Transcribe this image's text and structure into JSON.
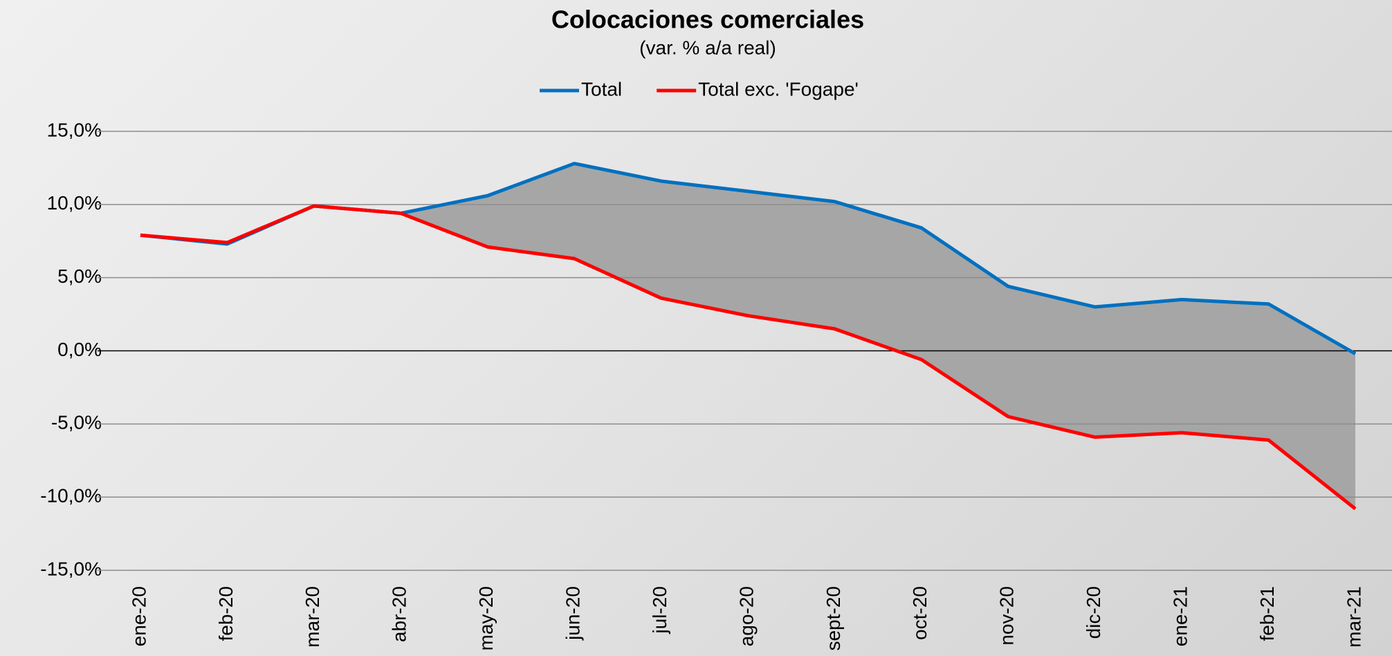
{
  "chart_data": {
    "type": "line",
    "title": "Colocaciones comerciales",
    "subtitle": "(var. % a/a real)",
    "categories": [
      "ene-20",
      "feb-20",
      "mar-20",
      "abr-20",
      "may-20",
      "jun-20",
      "jul-20",
      "ago-20",
      "sept-20",
      "oct-20",
      "nov-20",
      "dic-20",
      "ene-21",
      "feb-21",
      "mar-21"
    ],
    "series": [
      {
        "name": "Total",
        "color": "#0070c0",
        "values": [
          7.9,
          7.3,
          9.9,
          9.4,
          10.6,
          12.8,
          11.6,
          10.9,
          10.2,
          8.4,
          4.4,
          3.0,
          3.5,
          3.2,
          -0.2
        ]
      },
      {
        "name": "Total exc. 'Fogape'",
        "color": "#ff0000",
        "values": [
          7.9,
          7.4,
          9.9,
          9.4,
          7.1,
          6.3,
          3.6,
          2.4,
          1.5,
          -0.6,
          -4.5,
          -5.9,
          -5.6,
          -6.1,
          -10.8
        ]
      }
    ],
    "fill_between": {
      "color": "#a6a6a6"
    },
    "ylim": [
      -15,
      15
    ],
    "yticks": [
      {
        "value": -15,
        "label": "-15,0%"
      },
      {
        "value": -10,
        "label": "-10,0%"
      },
      {
        "value": -5,
        "label": "-5,0%"
      },
      {
        "value": 0,
        "label": "0,0%"
      },
      {
        "value": 5,
        "label": "5,0%"
      },
      {
        "value": 10,
        "label": "10,0%"
      },
      {
        "value": 15,
        "label": "15,0%"
      }
    ],
    "grid": true,
    "legend": "top"
  }
}
